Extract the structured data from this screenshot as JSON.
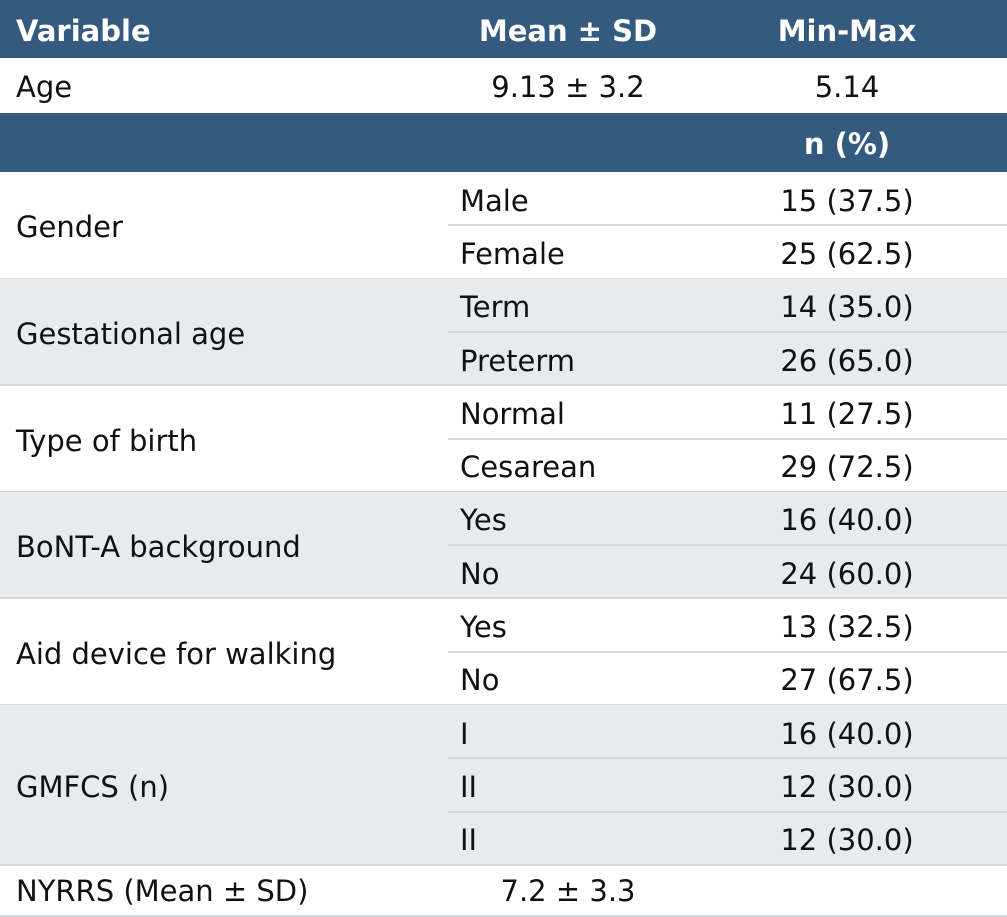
{
  "header": {
    "variable": "Variable",
    "mean_sd": "Mean ± SD",
    "min_max": "Min-Max"
  },
  "age_row": {
    "label": "Age",
    "mean_sd": "9.13 ± 3.2",
    "min_max": "5.14"
  },
  "subheader": "n (%)",
  "groups": [
    {
      "label": "Gender",
      "items": [
        {
          "category": "Male",
          "n_pct": "15 (37.5)"
        },
        {
          "category": "Female",
          "n_pct": "25 (62.5)"
        }
      ]
    },
    {
      "label": "Gestational age",
      "items": [
        {
          "category": "Term",
          "n_pct": "14 (35.0)"
        },
        {
          "category": "Preterm",
          "n_pct": "26 (65.0)"
        }
      ]
    },
    {
      "label": "Type of birth",
      "items": [
        {
          "category": "Normal",
          "n_pct": "11 (27.5)"
        },
        {
          "category": "Cesarean",
          "n_pct": "29 (72.5)"
        }
      ]
    },
    {
      "label": "BoNT-A background",
      "items": [
        {
          "category": "Yes",
          "n_pct": "16 (40.0)"
        },
        {
          "category": "No",
          "n_pct": "24 (60.0)"
        }
      ]
    },
    {
      "label": "Aid device for walking",
      "items": [
        {
          "category": "Yes",
          "n_pct": "13 (32.5)"
        },
        {
          "category": "No",
          "n_pct": "27 (67.5)"
        }
      ]
    },
    {
      "label": "GMFCS (n)",
      "items": [
        {
          "category": "I",
          "n_pct": "16 (40.0)"
        },
        {
          "category": "II",
          "n_pct": "12 (30.0)"
        },
        {
          "category": "II",
          "n_pct": "12 (30.0)"
        }
      ]
    }
  ],
  "footer_row": {
    "label": "NYRRS (Mean ± SD)",
    "value": "7.2 ± 3.3"
  }
}
